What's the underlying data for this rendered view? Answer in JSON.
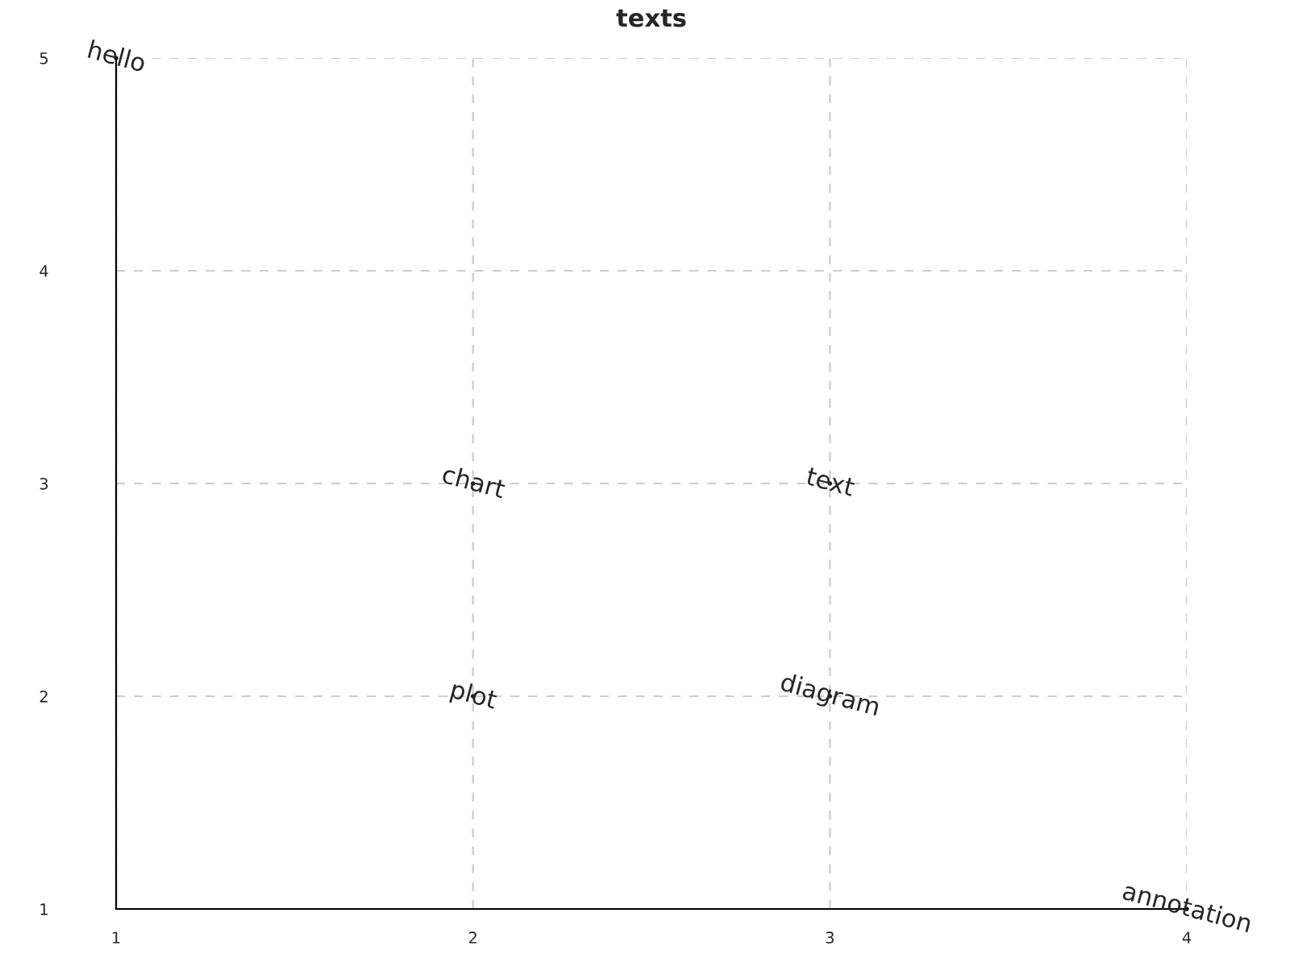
{
  "chart_data": {
    "type": "scatter",
    "title": "texts",
    "x": [
      1,
      2,
      3,
      2,
      3,
      4
    ],
    "values": [
      5,
      3,
      3,
      2,
      2,
      1
    ],
    "value_labels": [
      "hello",
      "chart",
      "text",
      "plot",
      "diagram",
      "annotation"
    ],
    "marker": "none",
    "xlim": [
      1,
      4
    ],
    "xticks": [
      1,
      2,
      3,
      4
    ],
    "ylim": [
      1,
      5
    ],
    "yticks": [
      1,
      2,
      3,
      4,
      5
    ],
    "grid": true
  }
}
